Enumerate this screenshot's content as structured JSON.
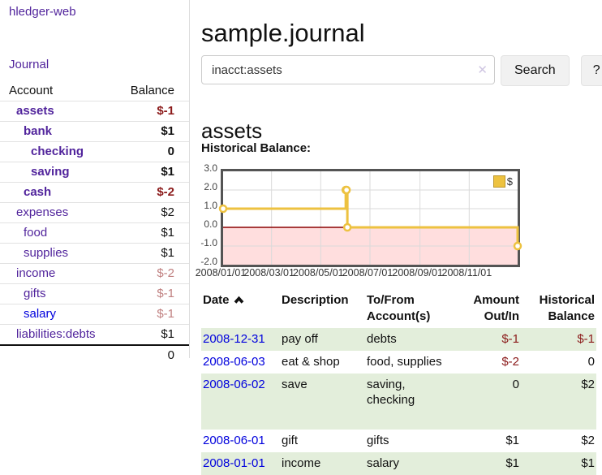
{
  "app": {
    "title": "hledger-web"
  },
  "sidebar": {
    "journal_link": "Journal",
    "accounts": {
      "header_account": "Account",
      "header_balance": "Balance",
      "rows": [
        {
          "name": "assets",
          "balance": "$-1"
        },
        {
          "name": "bank",
          "balance": "$1"
        },
        {
          "name": "checking",
          "balance": "0"
        },
        {
          "name": "saving",
          "balance": "$1"
        },
        {
          "name": "cash",
          "balance": "$-2"
        },
        {
          "name": "expenses",
          "balance": "$2"
        },
        {
          "name": "food",
          "balance": "$1"
        },
        {
          "name": "supplies",
          "balance": "$1"
        },
        {
          "name": "income",
          "balance": "$-2"
        },
        {
          "name": "gifts",
          "balance": "$-1"
        },
        {
          "name": "salary",
          "balance": "$-1"
        },
        {
          "name": "liabilities:debts",
          "balance": "$1"
        }
      ],
      "total": "0"
    }
  },
  "main": {
    "title": "sample.journal"
  },
  "search": {
    "value": "inacct:assets",
    "clear_icon": "✕",
    "button_label": "Search",
    "help_label": "?"
  },
  "account_page": {
    "title": "assets",
    "section_label": "Historical Balance:"
  },
  "chart_data": {
    "type": "line",
    "step": true,
    "title": "Historical Balance:",
    "series": [
      {
        "name": "$",
        "color": "#edc240",
        "points": [
          [
            "2008-01-01",
            1
          ],
          [
            "2008-06-01",
            2
          ],
          [
            "2008-06-02",
            2
          ],
          [
            "2008-06-03",
            0
          ],
          [
            "2008-12-31",
            -1
          ]
        ]
      }
    ],
    "xlim": [
      "2008-01-01",
      "2008-12-31"
    ],
    "ylim": [
      -2,
      3
    ],
    "x_ticks": [
      "2008/01/01",
      "2008/03/01",
      "2008/05/01",
      "2008/07/01",
      "2008/09/01",
      "2008/11/01"
    ],
    "y_ticks": [
      3.0,
      2.0,
      1.0,
      0.0,
      -1.0,
      -2.0
    ],
    "grid": true,
    "negative_region_color": "#ffdede",
    "zero_line_color": "#8b0000",
    "grid_color": "#dadada",
    "legend": {
      "label": "$",
      "position": "top-right"
    }
  },
  "register": {
    "headers": {
      "date": "Date",
      "description": "Description",
      "account": "To/From Account(s)",
      "amount": "Amount Out/In",
      "balance": "Historical Balance"
    },
    "rows": [
      {
        "date": "2008-12-31",
        "description": "pay off",
        "accounts": "debts",
        "amount": "$-1",
        "balance": "$-1"
      },
      {
        "date": "2008-06-03",
        "description": "eat & shop",
        "accounts": "food, supplies",
        "amount": "$-2",
        "balance": "0"
      },
      {
        "date": "2008-06-02",
        "description": "save",
        "accounts": "saving,\nchecking",
        "amount": "0",
        "balance": "$2"
      },
      {
        "date": "2008-06-01",
        "description": "gift",
        "accounts": "gifts",
        "amount": "$1",
        "balance": "$2"
      },
      {
        "date": "2008-01-01",
        "description": "income",
        "accounts": "salary",
        "amount": "$1",
        "balance": "$1"
      }
    ]
  },
  "colors": {
    "link_purple": "#51249c",
    "link_blue": "#0000dd",
    "negative_strong": "#8b1a1a",
    "negative_soft": "#c08080",
    "row_green": "#e3eedb",
    "series_gold": "#edc240",
    "negative_region": "#ffdede",
    "zero_line": "#8b0000"
  }
}
